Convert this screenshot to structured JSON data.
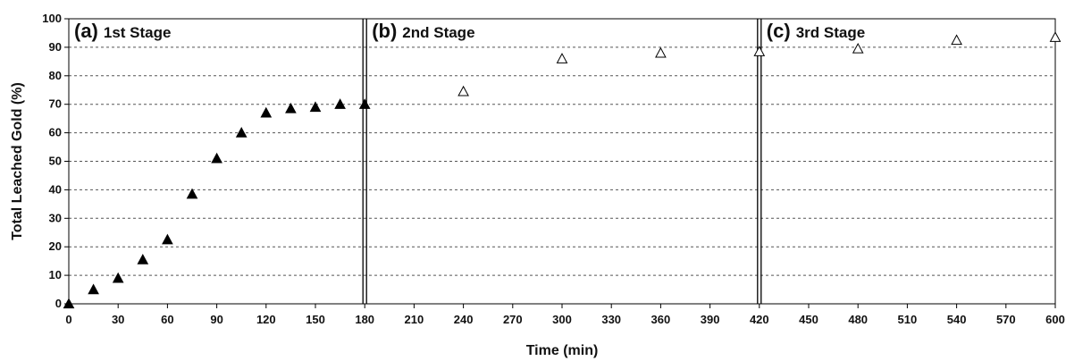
{
  "chart_data": {
    "type": "scatter",
    "xlabel": "Time (min)",
    "ylabel": "Total Leached Gold (%)",
    "xlim": [
      0,
      600
    ],
    "ylim": [
      0,
      100
    ],
    "x_ticks": [
      0,
      30,
      60,
      90,
      120,
      150,
      180,
      210,
      240,
      270,
      300,
      330,
      360,
      390,
      420,
      450,
      480,
      510,
      540,
      570,
      600
    ],
    "y_ticks": [
      0,
      10,
      20,
      30,
      40,
      50,
      60,
      70,
      80,
      90,
      100
    ],
    "grid": "horizontal dashed",
    "stage_boundaries": [
      180,
      420
    ],
    "stages": [
      {
        "letter": "(a)",
        "name": "1st Stage"
      },
      {
        "letter": "(b)",
        "name": "2nd Stage"
      },
      {
        "letter": "(c)",
        "name": "3rd Stage"
      }
    ],
    "series": [
      {
        "marker": "filled-triangle",
        "color": "#000000",
        "x": [
          0,
          15,
          30,
          45,
          60,
          75,
          90,
          105,
          120,
          135,
          150,
          165,
          180
        ],
        "y": [
          0,
          5,
          9,
          15.5,
          22.5,
          38.5,
          51,
          60,
          67,
          68.5,
          69,
          70,
          70
        ]
      },
      {
        "marker": "open-triangle",
        "color": "#000000",
        "x": [
          240,
          300,
          360,
          420,
          480,
          540,
          600
        ],
        "y": [
          74.5,
          86,
          88,
          88.5,
          89.5,
          92.5,
          93.5
        ]
      }
    ]
  }
}
